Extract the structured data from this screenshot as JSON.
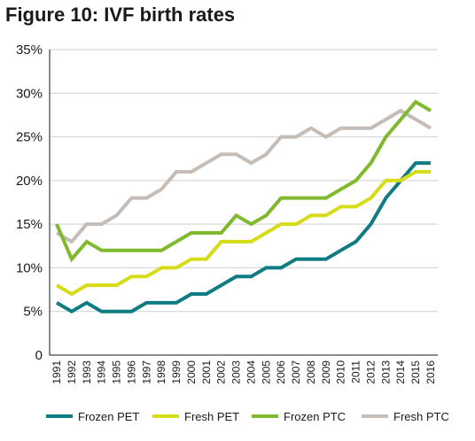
{
  "title": "Figure 10: IVF birth rates",
  "chart_data": {
    "type": "line",
    "title": "Figure 10: IVF birth rates",
    "xlabel": "",
    "ylabel": "",
    "ylim": [
      0,
      35
    ],
    "y_ticks": [
      "0",
      "5%",
      "10%",
      "15%",
      "20%",
      "25%",
      "30%",
      "35%"
    ],
    "grid": "horizontal",
    "legend_position": "bottom",
    "x": [
      "1991",
      "1992",
      "1993",
      "1994",
      "1995",
      "1996",
      "1997",
      "1998",
      "1999",
      "2000",
      "2001",
      "2002",
      "2003",
      "2004",
      "2005",
      "2006",
      "2007",
      "2008",
      "2009",
      "2010",
      "2011",
      "2012",
      "2013",
      "2014",
      "2015",
      "2016"
    ],
    "series": [
      {
        "name": "Frozen PET",
        "color": "#0f7b82",
        "values": [
          6,
          5,
          6,
          5,
          5,
          5,
          6,
          6,
          6,
          7,
          7,
          8,
          9,
          9,
          10,
          10,
          11,
          11,
          11,
          12,
          13,
          15,
          18,
          20,
          22,
          22
        ]
      },
      {
        "name": "Fresh PET",
        "color": "#d6dc18",
        "values": [
          8,
          7,
          8,
          8,
          8,
          9,
          9,
          10,
          10,
          11,
          11,
          13,
          13,
          13,
          14,
          15,
          15,
          16,
          16,
          17,
          17,
          18,
          20,
          20,
          21,
          21
        ]
      },
      {
        "name": "Frozen PTC",
        "color": "#80b92d",
        "values": [
          15,
          11,
          13,
          12,
          12,
          12,
          12,
          12,
          13,
          14,
          14,
          14,
          16,
          15,
          16,
          18,
          18,
          18,
          18,
          19,
          20,
          22,
          25,
          27,
          29,
          28
        ]
      },
      {
        "name": "Fresh PTC",
        "color": "#c4bdb7",
        "values": [
          14,
          13,
          15,
          15,
          16,
          18,
          18,
          19,
          21,
          21,
          22,
          23,
          23,
          22,
          23,
          25,
          25,
          26,
          25,
          26,
          26,
          26,
          27,
          28,
          27,
          26
        ]
      }
    ]
  }
}
